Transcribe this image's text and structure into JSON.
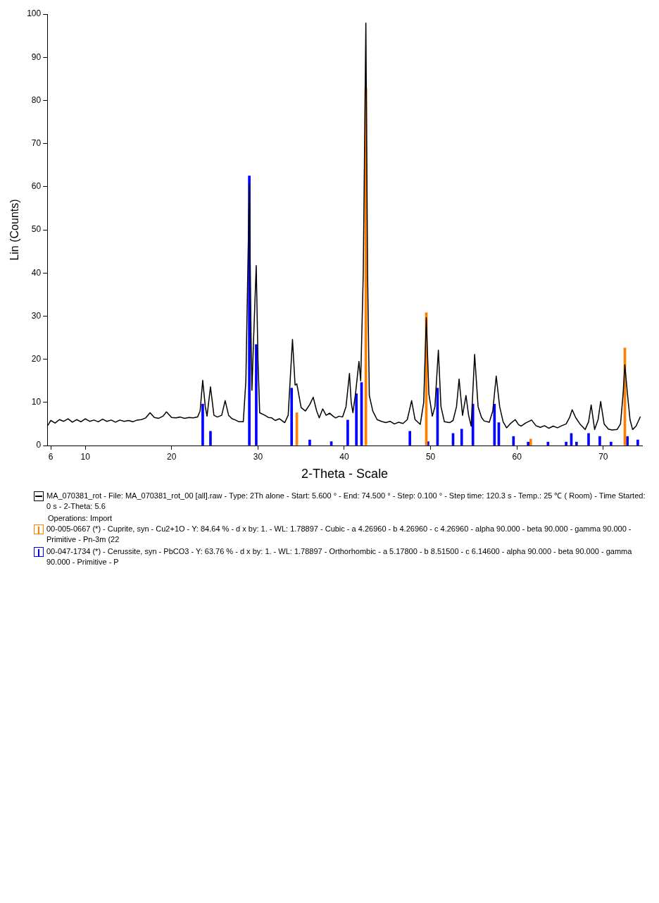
{
  "chart_data": {
    "type": "line",
    "xlabel": "2-Theta - Scale",
    "ylabel": "Lin (Counts)",
    "xlim": [
      5.6,
      74.5
    ],
    "xticks": [
      6,
      10,
      20,
      30,
      40,
      50,
      60,
      70
    ],
    "ylim": [
      0,
      100
    ],
    "yticks": [
      0,
      10,
      20,
      30,
      40,
      50,
      60,
      70,
      80,
      90,
      100
    ],
    "grid": false,
    "legend": "bottom",
    "marker": "none",
    "annotations": [
      "Operations: Import"
    ],
    "series": [
      {
        "name": "MA_070381_rot - File: MA_070381_rot_00 [all].raw - Type: 2Th alone - Start: 5.600 ° - End: 74.500 ° - Step: 0.100 ° - Step time: 120.3 s - Temp.: 25 ℃ ( Room) - Time Started: 0 s - 2-Theta: 5.6",
        "color": "#000000",
        "x": [
          5.6,
          6.0,
          6.5,
          7.0,
          7.5,
          8.0,
          8.5,
          9.0,
          9.5,
          10.0,
          10.5,
          11.0,
          11.5,
          12.0,
          12.5,
          13.0,
          13.5,
          14.0,
          14.5,
          15.0,
          15.5,
          16.0,
          16.5,
          17.0,
          17.5,
          18.0,
          18.5,
          19.0,
          19.4,
          20.0,
          20.5,
          21.0,
          21.5,
          22.0,
          22.5,
          23.0,
          23.3,
          23.6,
          23.9,
          24.1,
          24.5,
          24.9,
          25.3,
          25.8,
          26.2,
          26.6,
          27.0,
          27.4,
          27.8,
          28.3,
          28.6,
          29.0,
          29.2,
          29.3,
          29.5,
          29.8,
          30.0,
          30.2,
          30.8,
          31.2,
          31.6,
          32.0,
          32.5,
          33.1,
          33.5,
          34.0,
          34.3,
          34.5,
          35.0,
          35.5,
          36.0,
          36.4,
          36.8,
          37.1,
          37.5,
          37.9,
          38.3,
          38.7,
          39.0,
          39.4,
          39.8,
          40.2,
          40.6,
          40.8,
          41.0,
          41.3,
          41.7,
          41.9,
          42.2,
          42.5,
          42.7,
          42.9,
          43.3,
          43.8,
          44.3,
          44.8,
          45.3,
          45.8,
          46.3,
          46.8,
          47.3,
          47.8,
          48.2,
          48.8,
          49.2,
          49.5,
          49.8,
          50.2,
          50.5,
          50.9,
          51.2,
          51.6,
          52.2,
          52.6,
          53.0,
          53.3,
          53.7,
          54.1,
          54.4,
          54.7,
          55.1,
          55.5,
          55.9,
          56.2,
          56.8,
          57.2,
          57.6,
          58.0,
          58.4,
          58.8,
          59.2,
          59.8,
          60.2,
          60.5,
          61.0,
          61.7,
          62.2,
          62.7,
          63.2,
          63.7,
          64.2,
          64.7,
          65.2,
          65.7,
          66.1,
          66.4,
          66.8,
          67.3,
          67.9,
          68.3,
          68.6,
          69.0,
          69.4,
          69.7,
          70.1,
          70.6,
          71.0,
          71.6,
          72.0,
          72.3,
          72.5,
          72.8,
          73.1,
          73.4,
          73.8,
          74.3
        ],
        "values": [
          4.5,
          5.8,
          5.2,
          6.0,
          5.6,
          6.2,
          5.4,
          6.0,
          5.5,
          6.2,
          5.6,
          5.9,
          5.5,
          6.1,
          5.6,
          5.9,
          5.4,
          5.9,
          5.6,
          5.8,
          5.5,
          5.9,
          6.0,
          6.4,
          7.6,
          6.5,
          6.3,
          6.8,
          7.8,
          6.5,
          6.4,
          6.6,
          6.3,
          6.5,
          6.4,
          6.6,
          8.0,
          15.1,
          9.0,
          6.8,
          13.6,
          7.0,
          6.6,
          7.0,
          10.4,
          7.0,
          6.2,
          5.9,
          5.5,
          5.5,
          15,
          60.7,
          25,
          12.8,
          25,
          41.7,
          20,
          7.6,
          7.0,
          6.5,
          6.4,
          5.8,
          6.2,
          5.3,
          7.0,
          24.6,
          14.0,
          14.3,
          8.8,
          8.0,
          9.5,
          11.2,
          8.0,
          6.4,
          8.5,
          7.0,
          7.5,
          6.8,
          6.4,
          6.8,
          6.6,
          9.0,
          16.7,
          10.0,
          7.6,
          12,
          19.5,
          15,
          40,
          97.9,
          40,
          11.6,
          8.0,
          6.0,
          5.6,
          5.3,
          5.6,
          5.0,
          5.4,
          5.1,
          6.0,
          10.4,
          6.0,
          4.9,
          10,
          29.6,
          12,
          6.8,
          9,
          22.1,
          9,
          5.5,
          5.3,
          5.8,
          9,
          15.4,
          7,
          11.6,
          7,
          4.5,
          21.1,
          9,
          6.5,
          5.7,
          5.4,
          8,
          16.1,
          9,
          5.5,
          4.1,
          5.0,
          6.0,
          4.8,
          4.5,
          5.2,
          5.9,
          4.6,
          4.2,
          4.6,
          4.0,
          4.5,
          4.1,
          4.6,
          5.0,
          6.5,
          8.3,
          6.5,
          5.0,
          3.7,
          5.5,
          9.4,
          3.7,
          6,
          10.2,
          5,
          3.8,
          3.6,
          3.7,
          5,
          12,
          18.7,
          12,
          6,
          3.7,
          4.5,
          6.7
        ]
      },
      {
        "name": "00-005-0667 (*) - Cuprite, syn - Cu2+1O - Y: 84.64 % - d x by: 1. - WL: 1.78897 - Cubic - a 4.26960 - b 4.26960 - c 4.26960 - alpha 90.000 - beta 90.000 - gamma 90.000 - Primitive - Pn-3m (22",
        "type": "bar",
        "color": "#ff7f00",
        "x": [
          34.5,
          42.5,
          49.5,
          61.6,
          72.5
        ],
        "values": [
          7.6,
          83,
          30.8,
          1.5,
          22.6
        ]
      },
      {
        "name": "00-047-1734 (*) - Cerussite, syn - PbCO3 - Y: 63.76 % - d x by: 1. - WL: 1.78897 - Orthorhombic - a 5.17800 - b 8.51500 - c 6.14600 - alpha 90.000 - beta 90.000 - gamma 90.000 - Primitive - P",
        "type": "bar",
        "color": "#0000ff",
        "x": [
          23.6,
          24.5,
          29.0,
          29.8,
          33.9,
          36.0,
          38.5,
          40.4,
          41.4,
          42.0,
          47.6,
          49.7,
          50.8,
          52.6,
          53.6,
          54.9,
          57.4,
          57.9,
          59.6,
          61.3,
          63.6,
          65.7,
          66.3,
          66.9,
          68.3,
          69.6,
          70.9,
          72.8,
          74.0
        ],
        "values": [
          9.6,
          3.3,
          62.5,
          23.4,
          13.3,
          1.3,
          0.9,
          5.9,
          12.0,
          14.6,
          3.3,
          0.9,
          13.3,
          2.8,
          3.8,
          9.6,
          9.6,
          5.3,
          2.1,
          0.8,
          0.8,
          0.8,
          2.8,
          0.8,
          2.8,
          2.1,
          0.8,
          2.1,
          1.3
        ]
      }
    ]
  }
}
